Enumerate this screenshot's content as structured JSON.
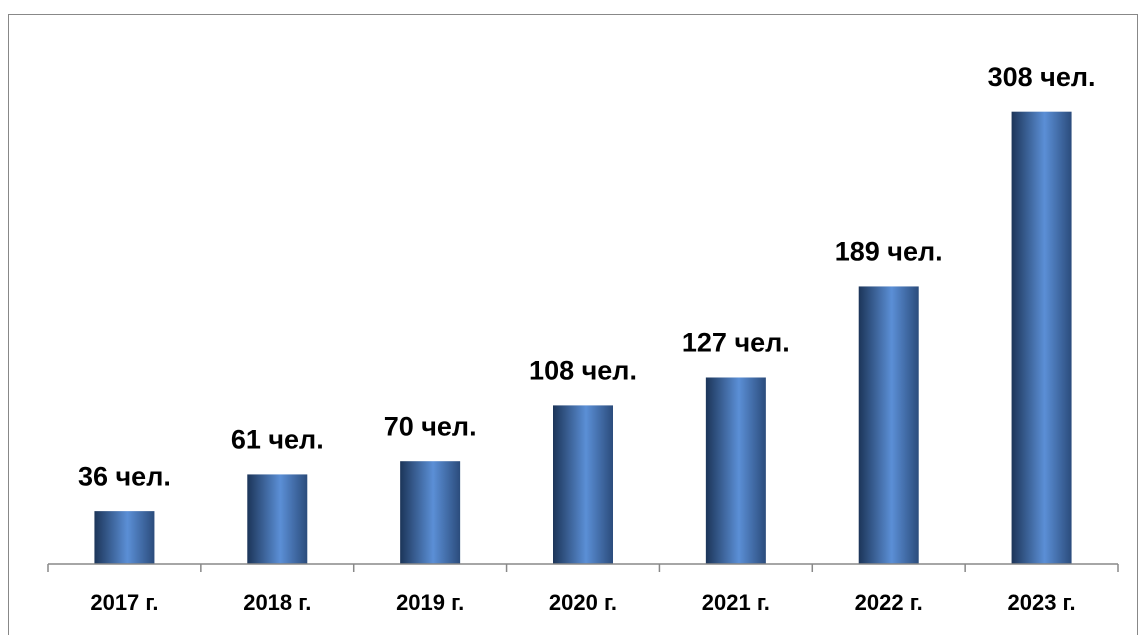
{
  "chart_data": {
    "type": "bar",
    "categories": [
      "2017 г.",
      "2018 г.",
      "2019 г.",
      "2020 г.",
      "2021 г.",
      "2022 г.",
      "2023 г."
    ],
    "values": [
      36,
      61,
      70,
      108,
      127,
      189,
      308
    ],
    "value_labels": [
      "36 чел.",
      "61 чел.",
      "70 чел.",
      "108 чел.",
      "127 чел.",
      "189 чел.",
      "308 чел."
    ],
    "color": "#5b8fd6",
    "ylim": [
      0,
      350
    ]
  }
}
